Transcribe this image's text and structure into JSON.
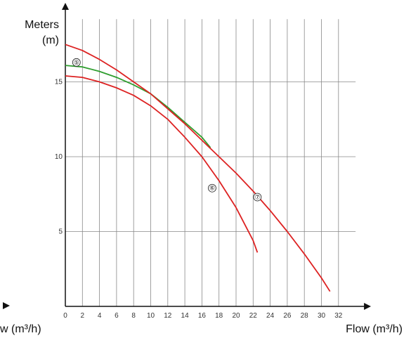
{
  "chart_data": {
    "type": "line",
    "ylabel_lines": [
      "Meters",
      "(m)"
    ],
    "xlabel": "Flow (m³/h)",
    "xlabel_left_fragment": "w (m³/h)",
    "xlim": [
      0,
      34
    ],
    "ylim": [
      0,
      19
    ],
    "x_ticks": [
      0,
      2,
      4,
      6,
      8,
      10,
      12,
      14,
      16,
      18,
      20,
      22,
      24,
      26,
      28,
      30,
      32
    ],
    "y_ticks": [
      5,
      10,
      15
    ],
    "grid": true,
    "colors": {
      "red": "#dd2222",
      "green": "#2f9e2f",
      "grid": "#888888",
      "axis": "#111111"
    },
    "series": [
      {
        "marker": "⑤",
        "color": "#2f9e2f",
        "marker_at": [
          1.3,
          16.3
        ],
        "points": [
          [
            0,
            16.1
          ],
          [
            2,
            16.0
          ],
          [
            4,
            15.7
          ],
          [
            6,
            15.3
          ],
          [
            8,
            14.8
          ],
          [
            10,
            14.2
          ],
          [
            12,
            13.3
          ],
          [
            14,
            12.3
          ],
          [
            16,
            11.3
          ],
          [
            17,
            10.6
          ]
        ]
      },
      {
        "marker": "⑥",
        "color": "#dd2222",
        "marker_at": [
          17.2,
          7.9
        ],
        "points": [
          [
            0,
            15.4
          ],
          [
            2,
            15.3
          ],
          [
            4,
            15.0
          ],
          [
            6,
            14.6
          ],
          [
            8,
            14.1
          ],
          [
            10,
            13.4
          ],
          [
            12,
            12.5
          ],
          [
            14,
            11.3
          ],
          [
            16,
            10.0
          ],
          [
            18,
            8.4
          ],
          [
            20,
            6.6
          ],
          [
            22,
            4.4
          ],
          [
            22.5,
            3.6
          ]
        ]
      },
      {
        "marker": "⑦",
        "color": "#dd2222",
        "marker_at": [
          22.5,
          7.3
        ],
        "points": [
          [
            0,
            17.5
          ],
          [
            2,
            17.1
          ],
          [
            4,
            16.5
          ],
          [
            6,
            15.8
          ],
          [
            8,
            15.0
          ],
          [
            10,
            14.2
          ],
          [
            12,
            13.2
          ],
          [
            14,
            12.2
          ],
          [
            16,
            11.1
          ],
          [
            18,
            10.0
          ],
          [
            20,
            8.9
          ],
          [
            22,
            7.7
          ],
          [
            24,
            6.4
          ],
          [
            26,
            5.0
          ],
          [
            28,
            3.5
          ],
          [
            30,
            1.9
          ],
          [
            31,
            1.0
          ]
        ]
      }
    ]
  }
}
